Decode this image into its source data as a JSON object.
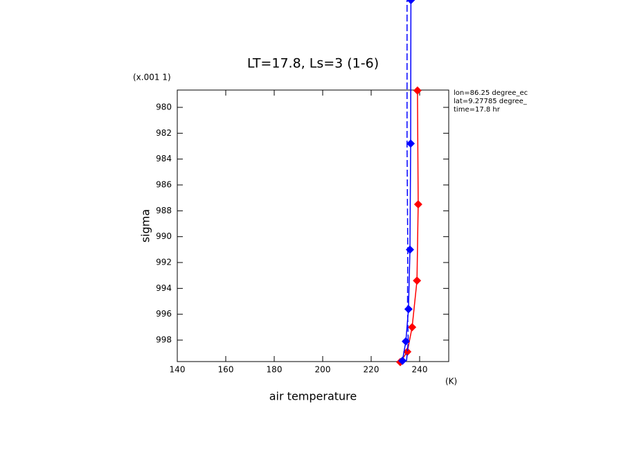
{
  "chart_data": {
    "type": "line",
    "title": "LT=17.8, Ls=3 (1-6)",
    "y_scale_label": "(x.001 1)",
    "x_unit_label": "(K)",
    "x_label": "air temperature",
    "y_label": "sigma",
    "annotations": [
      "lon=86.25 degree_ec",
      "lat=9.27785 degree_",
      "time=17.8 hr"
    ],
    "xlim": [
      140,
      252
    ],
    "xticks": [
      140,
      160,
      180,
      200,
      220,
      240
    ],
    "ylim": [
      999.66,
      978.66
    ],
    "yticks": [
      980,
      982,
      984,
      986,
      988,
      990,
      992,
      994,
      996,
      998
    ],
    "series": [
      {
        "color": "#ff0000",
        "line_style": "solid",
        "markers": true,
        "x": [
          239.1,
          239.4,
          238.9,
          236.9,
          234.9,
          232.0
        ],
        "values": [
          978.7,
          987.5,
          993.4,
          997.0,
          998.9,
          999.7
        ]
      },
      {
        "color": "#0000ff",
        "line_style": "solid",
        "markers": true,
        "x": [
          232.9,
          234.3,
          235.4,
          236.0,
          236.3,
          236.4
        ],
        "values": [
          999.6,
          998.1,
          995.6,
          991.0,
          982.8,
          971.7
        ]
      },
      {
        "color": "#0000ff",
        "line_style": "dashed",
        "markers": false,
        "x": [
          234.6,
          235.3,
          235.0,
          235.1,
          234.8,
          234.8
        ],
        "values": [
          999.6,
          998.1,
          995.6,
          991.0,
          982.8,
          971.7
        ]
      }
    ]
  }
}
